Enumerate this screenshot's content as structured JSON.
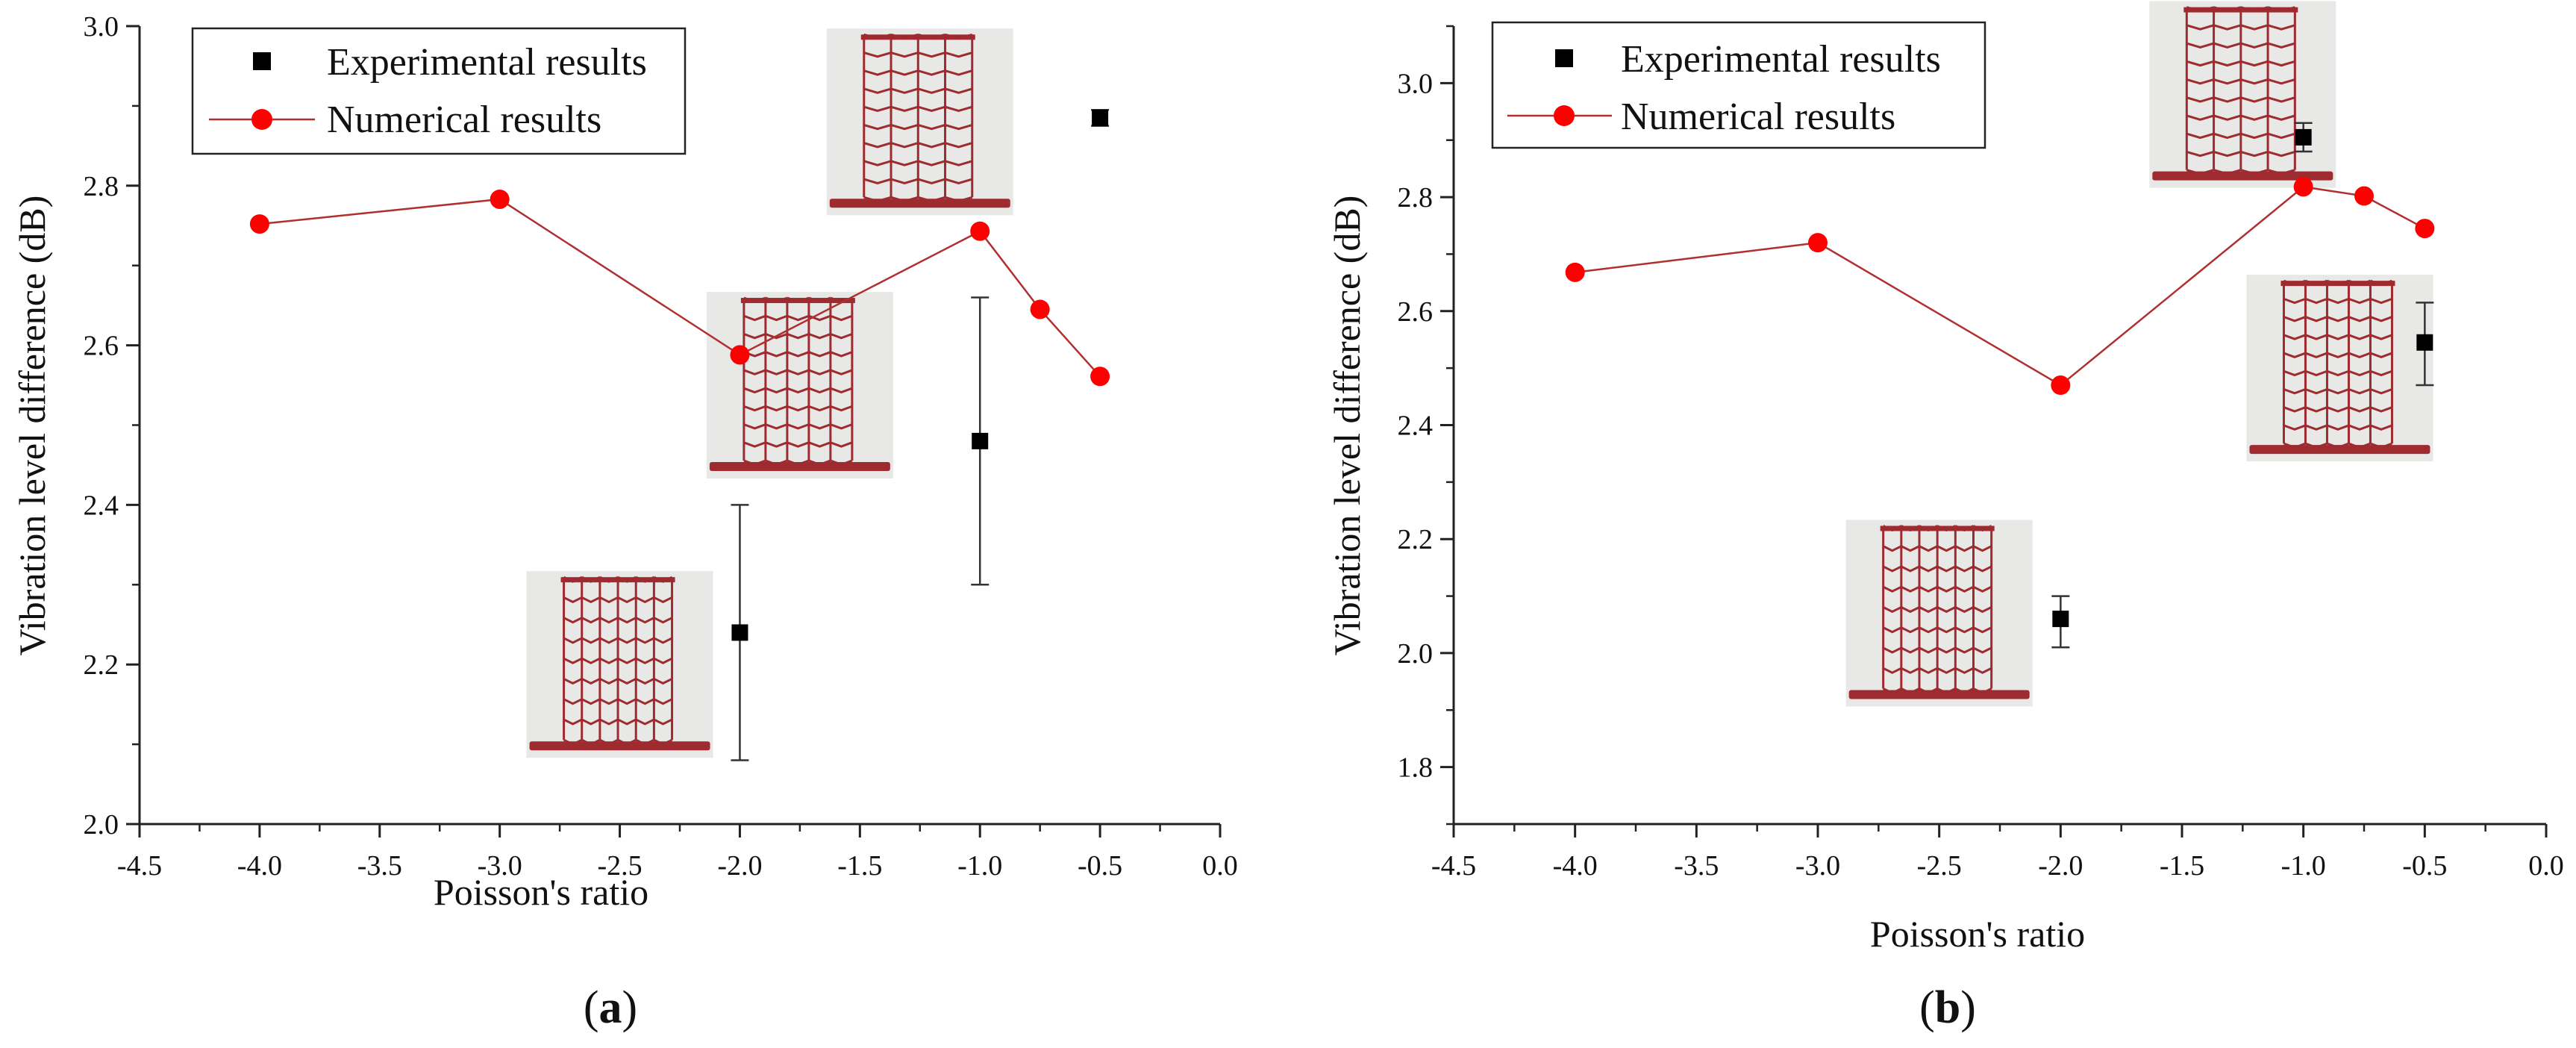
{
  "figure": {
    "panel_labels": [
      {
        "open": "(",
        "letter": "a",
        "close": ")"
      },
      {
        "open": "(",
        "letter": "b",
        "close": ")"
      }
    ],
    "colors": {
      "experimental": "#000000",
      "numerical_marker": "#ff0000",
      "numerical_line": "#b03030",
      "specimen": "#9e2b30",
      "specimen_bg": "#e8e8e6",
      "axis": "#222222"
    }
  },
  "chart_data": [
    {
      "type": "scatter+line",
      "title": "",
      "xlabel": "Poisson's ratio",
      "ylabel": "Vibration level difference (dB)",
      "xlim": [
        -4.5,
        0.0
      ],
      "ylim": [
        2.0,
        3.0
      ],
      "xticks": [
        -4.5,
        -4.0,
        -3.5,
        -3.0,
        -2.5,
        -2.0,
        -1.5,
        -1.0,
        -0.5,
        0.0
      ],
      "xtick_labels": [
        "-4.5",
        "-4.0",
        "-3.5",
        "-3.0",
        "-2.5",
        "-2.0",
        "-1.5",
        "-1.0",
        "-0.5",
        "0.0"
      ],
      "yticks": [
        2.0,
        2.2,
        2.4,
        2.6,
        2.8,
        3.0
      ],
      "ytick_labels": [
        "2.0",
        "2.2",
        "2.4",
        "2.6",
        "2.8",
        "3.0"
      ],
      "legend_position": "top-left",
      "series": [
        {
          "name": "Experimental results",
          "kind": "scatter-errorbar",
          "marker": "square",
          "x": [
            -2.0,
            -1.0,
            -0.5
          ],
          "y": [
            2.24,
            2.48,
            2.885
          ],
          "yerr_low": [
            2.08,
            2.3,
            2.875
          ],
          "yerr_high": [
            2.4,
            2.66,
            2.895
          ]
        },
        {
          "name": "Numerical results",
          "kind": "line-marker",
          "marker": "circle",
          "x": [
            -4.0,
            -3.0,
            -2.0,
            -1.0,
            -0.75,
            -0.5
          ],
          "y": [
            2.752,
            2.783,
            2.588,
            2.743,
            2.645,
            2.561
          ]
        }
      ],
      "insets": [
        {
          "x": -2.5,
          "y": 2.2,
          "cols": 6,
          "rows": 8
        },
        {
          "x": -1.75,
          "y": 2.55,
          "cols": 5,
          "rows": 9
        },
        {
          "x": -1.25,
          "y": 2.88,
          "cols": 4,
          "rows": 9
        }
      ]
    },
    {
      "type": "scatter+line",
      "title": "",
      "xlabel": "Poisson's ratio",
      "ylabel": "Vibration level difference (dB)",
      "xlim": [
        -4.5,
        0.0
      ],
      "ylim": [
        1.7,
        3.1
      ],
      "xticks": [
        -4.5,
        -4.0,
        -3.5,
        -3.0,
        -2.5,
        -2.0,
        -1.5,
        -1.0,
        -0.5,
        0.0
      ],
      "xtick_labels": [
        "-4.5",
        "-4.0",
        "-3.5",
        "-3.0",
        "-2.5",
        "-2.0",
        "-1.5",
        "-1.0",
        "-0.5",
        "0.0"
      ],
      "yticks": [
        1.8,
        2.0,
        2.2,
        2.4,
        2.6,
        2.8,
        3.0
      ],
      "ytick_labels": [
        "1.8",
        "2.0",
        "2.2",
        "2.4",
        "2.6",
        "2.8",
        "3.0"
      ],
      "legend_position": "top-left",
      "series": [
        {
          "name": "Experimental results",
          "kind": "scatter-errorbar",
          "marker": "square",
          "x": [
            -2.0,
            -1.0,
            -0.5
          ],
          "y": [
            2.06,
            2.905,
            2.545
          ],
          "yerr_low": [
            2.01,
            2.88,
            2.47
          ],
          "yerr_high": [
            2.1,
            2.93,
            2.615
          ]
        },
        {
          "name": "Numerical results",
          "kind": "line-marker",
          "marker": "circle",
          "x": [
            -4.0,
            -3.0,
            -2.0,
            -1.0,
            -0.75,
            -0.5
          ],
          "y": [
            2.668,
            2.72,
            2.47,
            2.818,
            2.802,
            2.745
          ]
        }
      ],
      "insets": [
        {
          "x": -2.5,
          "y": 2.07,
          "cols": 6,
          "rows": 8
        },
        {
          "x": -1.25,
          "y": 2.98,
          "cols": 4,
          "rows": 9
        },
        {
          "x": -0.85,
          "y": 2.5,
          "cols": 5,
          "rows": 9
        }
      ]
    }
  ]
}
